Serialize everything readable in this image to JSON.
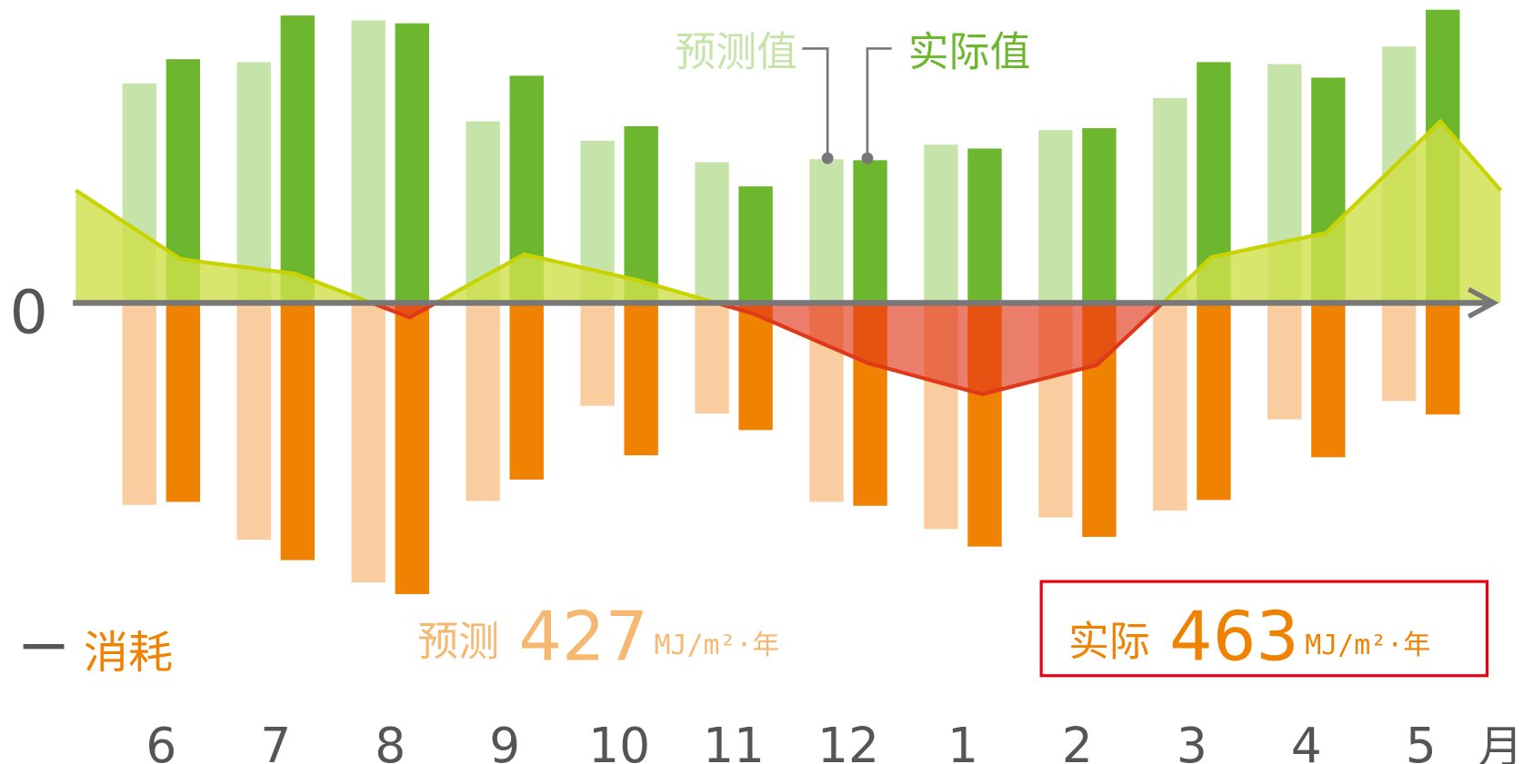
{
  "chart_data": {
    "type": "bar",
    "categories": [
      "6",
      "7",
      "8",
      "9",
      "10",
      "11",
      "12",
      "1",
      "2",
      "3",
      "4",
      "5"
    ],
    "x_unit": "月",
    "zero_label": "0",
    "generation": {
      "series": [
        {
          "name": "预测值",
          "color": "#c6e4aa",
          "values": [
            226,
            248,
            291,
            187,
            167,
            145,
            148,
            163,
            178,
            211,
            246,
            264
          ]
        },
        {
          "name": "实际值",
          "color": "#6db72e",
          "values": [
            251,
            296,
            288,
            234,
            182,
            120,
            147,
            159,
            180,
            248,
            232,
            302
          ]
        }
      ]
    },
    "consumption": {
      "label": "消耗",
      "series": [
        {
          "color": "#f9cd9f",
          "values": [
            -208,
            -244,
            -288,
            -204,
            -106,
            -114,
            -205,
            -233,
            -221,
            -214,
            -120,
            -101
          ]
        },
        {
          "color": "#ef8200",
          "values": [
            -205,
            -265,
            -300,
            -182,
            -157,
            -131,
            -209,
            -251,
            -241,
            -203,
            -159,
            -115
          ]
        }
      ]
    },
    "net": {
      "color": "#c8d400",
      "fill": "#cfe04a",
      "negative_color": "#e0391a",
      "values": [
        45,
        30,
        -15,
        50,
        23,
        -11,
        -62,
        -94,
        -64,
        47,
        72,
        187
      ]
    },
    "summary": [
      {
        "label": "预测",
        "value": 427,
        "unit": "MJ/m²·年",
        "color": "#f6b870"
      },
      {
        "label": "实际",
        "value": 463,
        "unit": "MJ/m²·年",
        "color": "#ef8200",
        "boxed": true
      }
    ]
  }
}
